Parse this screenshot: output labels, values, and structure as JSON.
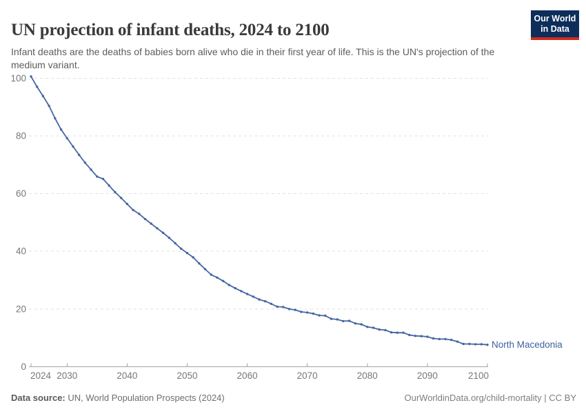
{
  "header": {
    "title": "UN projection of infant deaths, 2024 to 2100",
    "subtitle": "Infant deaths are the deaths of babies born alive who die in their first year of life. This is the UN's projection of the medium variant.",
    "logo": {
      "line1": "Our World",
      "line2": "in Data"
    }
  },
  "chart_data": {
    "type": "line",
    "title": "UN projection of infant deaths, 2024 to 2100",
    "xlabel": "",
    "ylabel": "",
    "xlim": [
      2024,
      2100
    ],
    "ylim": [
      0,
      100
    ],
    "x_ticks": [
      2024,
      2030,
      2040,
      2050,
      2060,
      2070,
      2080,
      2090,
      2100
    ],
    "y_ticks": [
      0,
      20,
      40,
      60,
      80,
      100
    ],
    "grid": "horizontal-dashed",
    "legend": "end-of-line-label",
    "x": [
      2024,
      2025,
      2026,
      2027,
      2028,
      2029,
      2030,
      2031,
      2032,
      2033,
      2034,
      2035,
      2036,
      2037,
      2038,
      2039,
      2040,
      2041,
      2042,
      2043,
      2044,
      2045,
      2046,
      2047,
      2048,
      2049,
      2050,
      2051,
      2052,
      2053,
      2054,
      2055,
      2056,
      2057,
      2058,
      2059,
      2060,
      2061,
      2062,
      2063,
      2064,
      2065,
      2066,
      2067,
      2068,
      2069,
      2070,
      2071,
      2072,
      2073,
      2074,
      2075,
      2076,
      2077,
      2078,
      2079,
      2080,
      2081,
      2082,
      2083,
      2084,
      2085,
      2086,
      2087,
      2088,
      2089,
      2090,
      2091,
      2092,
      2093,
      2094,
      2095,
      2096,
      2097,
      2098,
      2099,
      2100
    ],
    "series": [
      {
        "name": "North Macedonia",
        "color": "#4566a1",
        "label_color": "#3d639e",
        "values": [
          100.6,
          97.0,
          93.8,
          90.4,
          86.1,
          82.2,
          79.2,
          76.3,
          73.4,
          70.7,
          68.3,
          65.9,
          65.1,
          62.8,
          60.5,
          58.5,
          56.4,
          54.3,
          53.0,
          51.2,
          49.6,
          48.0,
          46.4,
          44.7,
          42.8,
          40.9,
          39.4,
          37.9,
          35.8,
          33.8,
          31.9,
          30.9,
          29.7,
          28.3,
          27.2,
          26.2,
          25.2,
          24.3,
          23.3,
          22.7,
          21.8,
          20.8,
          20.7,
          20.0,
          19.7,
          19.0,
          18.8,
          18.4,
          17.8,
          17.7,
          16.6,
          16.4,
          15.8,
          15.9,
          15.0,
          14.7,
          13.8,
          13.5,
          12.9,
          12.7,
          11.9,
          11.8,
          11.8,
          11.0,
          10.7,
          10.6,
          10.4,
          9.8,
          9.6,
          9.6,
          9.3,
          8.7,
          7.9,
          7.9,
          7.8,
          7.8,
          7.6
        ]
      }
    ]
  },
  "footer": {
    "source_bold": "Data source:",
    "source_rest": "UN, World Population Prospects (2024)",
    "license": "OurWorldinData.org/child-mortality | CC BY"
  },
  "colors": {
    "title": "#3a3a3a",
    "subtitle": "#5c5c5c",
    "axis_label": "#777777",
    "gridline": "#e2e2e2",
    "axis_line": "#a3a3a3",
    "logo_bg": "#0d2e5b",
    "logo_accent": "#d02a20"
  }
}
